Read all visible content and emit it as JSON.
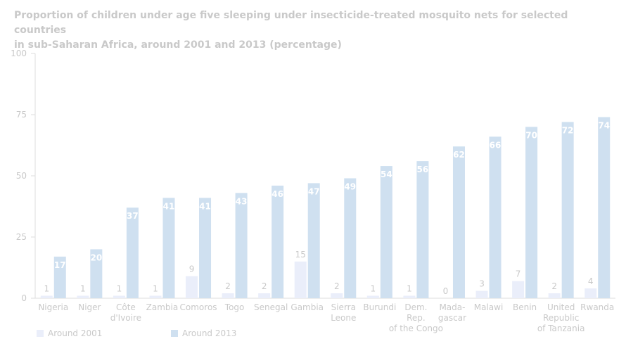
{
  "colors": {
    "around_2001": "#eaeefa",
    "around_2013": "#cfe0f0",
    "text": "#c9c9c9",
    "grid": "#eeeeee",
    "label_inside": "#ffffff"
  },
  "chart_data": {
    "type": "bar",
    "title_lines": [
      "Proportion of children under age five sleeping under insecticide-treated mosquito nets for selected countries",
      "in sub-Saharan Africa, around 2001 and 2013 (percentage)"
    ],
    "categories": [
      [
        "Nigeria"
      ],
      [
        "Niger"
      ],
      [
        "Côte",
        "d'Ivoire"
      ],
      [
        "Zambia"
      ],
      [
        "Comoros"
      ],
      [
        "Togo"
      ],
      [
        "Senegal"
      ],
      [
        "Gambia"
      ],
      [
        "Sierra",
        "Leone"
      ],
      [
        "Burundi"
      ],
      [
        "Dem.",
        "Rep.",
        "of the Congo"
      ],
      [
        "Mada-",
        "gascar"
      ],
      [
        "Malawi"
      ],
      [
        "Benin"
      ],
      [
        "United",
        "Republic",
        "of Tanzania"
      ],
      [
        "Rwanda"
      ]
    ],
    "series": [
      {
        "name": "Around 2001",
        "values": [
          1,
          1,
          1,
          1,
          9,
          2,
          2,
          15,
          2,
          1,
          1,
          0,
          3,
          7,
          2,
          4
        ]
      },
      {
        "name": "Around 2013",
        "values": [
          17,
          20,
          37,
          41,
          41,
          43,
          46,
          47,
          49,
          54,
          56,
          62,
          66,
          70,
          72,
          74
        ]
      }
    ],
    "ylim": [
      0,
      100
    ],
    "yticks": [
      0,
      25,
      50,
      75,
      100
    ],
    "grid": true,
    "legend": "bottom-left"
  }
}
